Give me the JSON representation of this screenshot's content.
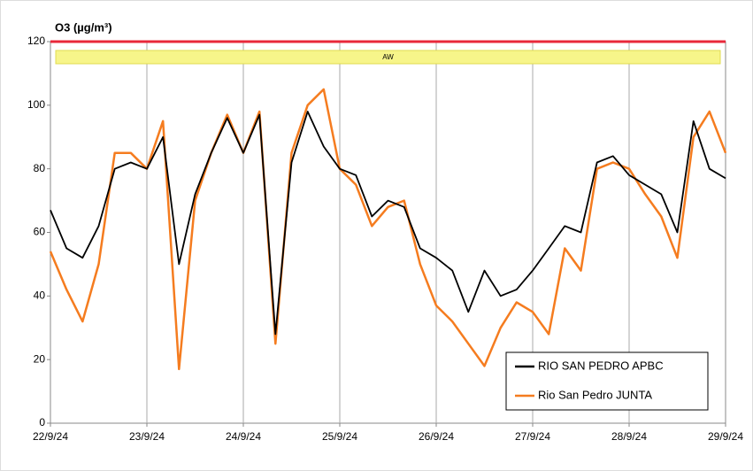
{
  "chart_data": {
    "type": "line",
    "title": "O3  (µg/m³)",
    "band_label": "AW",
    "threshold": 120,
    "threshold_color": "#e8283a",
    "categories": [
      "22/9/24",
      null,
      null,
      null,
      null,
      null,
      "23/9/24",
      null,
      null,
      null,
      null,
      null,
      "24/9/24",
      null,
      null,
      null,
      null,
      null,
      "25/9/24",
      null,
      null,
      null,
      null,
      null,
      "26/9/24",
      null,
      null,
      null,
      null,
      null,
      "27/9/24",
      null,
      null,
      null,
      null,
      null,
      "28/9/24",
      null,
      null,
      null,
      null,
      null,
      "29/9/24"
    ],
    "series": [
      {
        "name": "RIO SAN PEDRO APBC",
        "color": "#000000",
        "values": [
          67,
          55,
          52,
          62,
          80,
          82,
          80,
          90,
          50,
          72,
          85,
          96,
          85,
          97,
          28,
          82,
          98,
          87,
          80,
          78,
          65,
          70,
          68,
          55,
          52,
          48,
          35,
          48,
          40,
          42,
          48,
          55,
          62,
          60,
          82,
          84,
          78,
          75,
          72,
          60,
          95,
          80,
          77
        ]
      },
      {
        "name": "Rio San Pedro JUNTA",
        "color": "#f57c1f",
        "values": [
          54,
          42,
          32,
          50,
          85,
          85,
          80,
          95,
          17,
          70,
          85,
          97,
          85,
          98,
          25,
          85,
          100,
          105,
          80,
          75,
          62,
          68,
          70,
          50,
          37,
          32,
          25,
          18,
          30,
          38,
          35,
          28,
          55,
          48,
          80,
          82,
          80,
          72,
          65,
          52,
          90,
          98,
          85
        ]
      }
    ],
    "ylim": [
      0,
      120
    ],
    "yticks": [
      0,
      20,
      40,
      60,
      80,
      100,
      120
    ],
    "grid": true,
    "legend": "bottom-right"
  }
}
